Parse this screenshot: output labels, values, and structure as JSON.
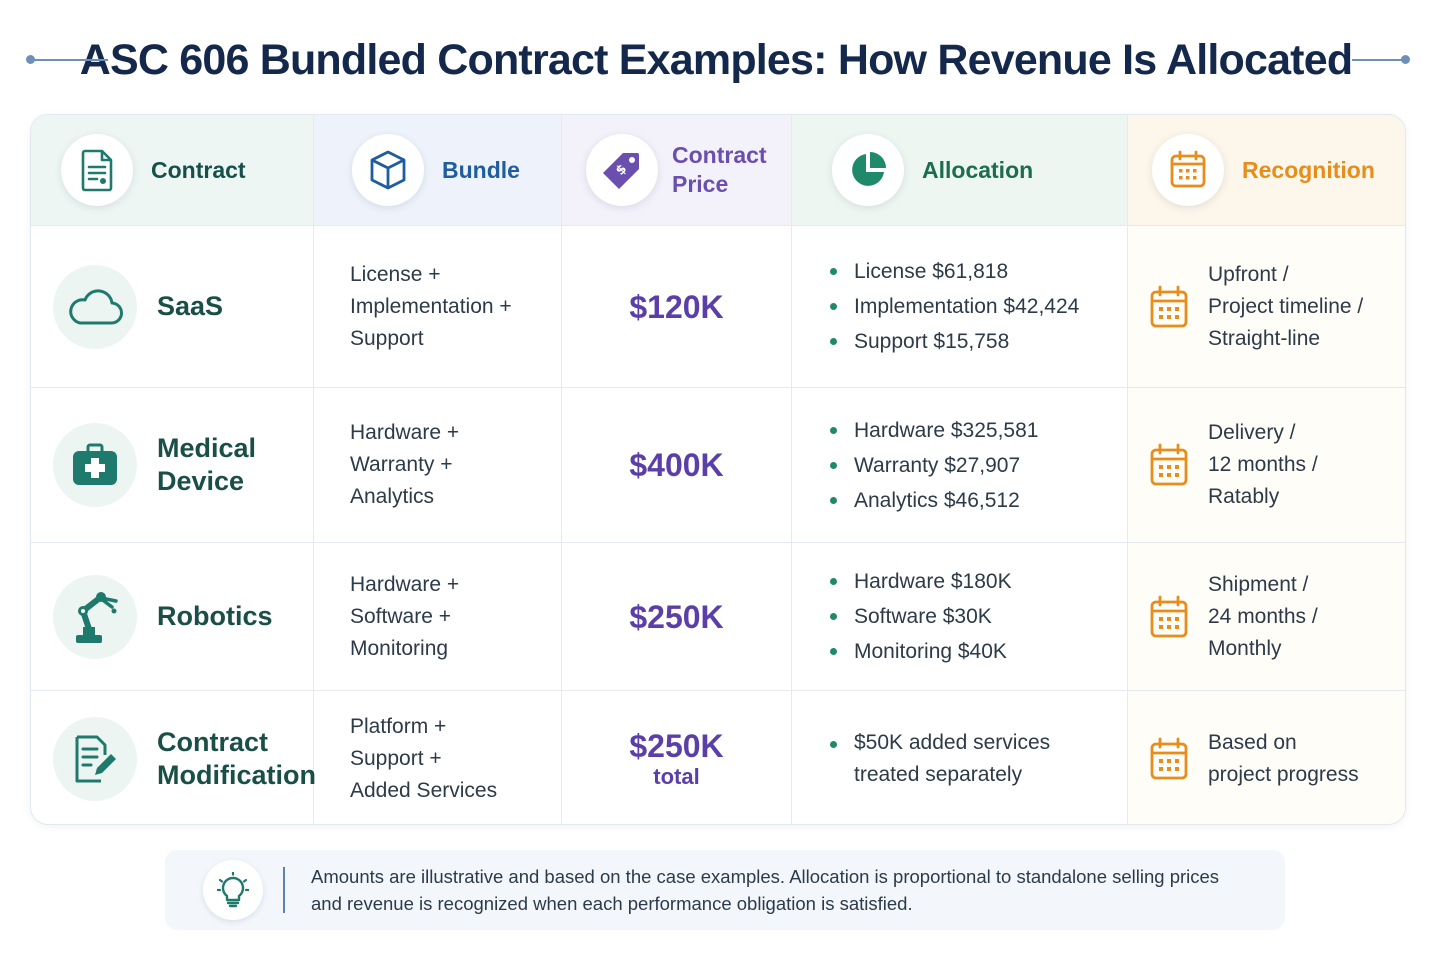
{
  "title": "ASC 606 Bundled Contract Examples: How Revenue Is Allocated",
  "headers": {
    "contract": "Contract",
    "bundle": "Bundle",
    "price_line1": "Contract",
    "price_line2": "Price",
    "allocation": "Allocation",
    "recognition": "Recognition"
  },
  "rows": [
    {
      "contract": [
        "SaaS"
      ],
      "icon": "cloud-icon",
      "bundle": [
        "License +",
        "Implementation +",
        "Support"
      ],
      "price": "$120K",
      "price_sub": "",
      "allocation": [
        "License $61,818",
        "Implementation $42,424",
        "Support $15,758"
      ],
      "recognition": [
        "Upfront /",
        "Project timeline /",
        "Straight-line"
      ]
    },
    {
      "contract": [
        "Medical",
        "Device"
      ],
      "icon": "medical-kit-icon",
      "bundle": [
        "Hardware +",
        "Warranty +",
        "Analytics"
      ],
      "price": "$400K",
      "price_sub": "",
      "allocation": [
        "Hardware $325,581",
        "Warranty $27,907",
        "Analytics $46,512"
      ],
      "recognition": [
        "Delivery /",
        "12 months /",
        "Ratably"
      ]
    },
    {
      "contract": [
        "Robotics"
      ],
      "icon": "robot-arm-icon",
      "bundle": [
        "Hardware +",
        "Software +",
        "Monitoring"
      ],
      "price": "$250K",
      "price_sub": "",
      "allocation": [
        "Hardware $180K",
        "Software $30K",
        "Monitoring $40K"
      ],
      "recognition": [
        "Shipment /",
        "24 months /",
        "Monthly"
      ]
    },
    {
      "contract": [
        "Contract",
        "Modification"
      ],
      "icon": "document-edit-icon",
      "bundle": [
        "Platform +",
        "Support +",
        "Added Services"
      ],
      "price": "$250K",
      "price_sub": "total",
      "allocation_line1": "$50K added services",
      "allocation_line2": "treated separately",
      "recognition": [
        "Based on",
        "project progress"
      ]
    }
  ],
  "note": {
    "line1": "Amounts are illustrative and based on the case examples. Allocation is proportional to standalone selling prices",
    "line2": "and revenue is recognized when each performance obligation is satisfied."
  },
  "colors": {
    "title": "#14284b",
    "teal": "#17504a",
    "blue": "#1f5d9e",
    "purple": "#5b3ea8",
    "green": "#1f8a6a",
    "orange": "#e88d1b"
  }
}
